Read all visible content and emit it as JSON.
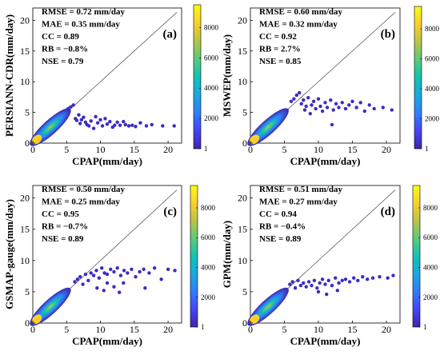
{
  "figure": {
    "colorbar_ticks": [
      "1",
      "2000",
      "4000",
      "6000",
      "8000"
    ],
    "colorbar_range": [
      1,
      9500
    ],
    "colormap": [
      "#3e26a8",
      "#4743f8",
      "#2f7efb",
      "#1aa9e0",
      "#10c3b2",
      "#5cca7b",
      "#b9c446",
      "#f9d02a",
      "#f9fb15"
    ],
    "scatter_color": "#3a2dc4"
  },
  "chart_data": [
    {
      "type": "scatter",
      "panel_label": "(a)",
      "xlabel": "CPAP(mm/day)",
      "ylabel": "PERSIANN-CDR(mm/day)",
      "xlim": [
        0,
        22
      ],
      "ylim": [
        0,
        22
      ],
      "xticks": [
        0,
        5,
        10,
        15,
        20
      ],
      "yticks": [
        0,
        5,
        10,
        15,
        20
      ],
      "reference_line": "1:1",
      "stats": [
        "RMSE = 0.72 mm/day",
        "MAE = 0.35 mm/day",
        "CC = 0.89",
        "RB = −0.8%",
        "NSE = 0.79"
      ],
      "points": [
        [
          5.2,
          5.6
        ],
        [
          5.6,
          5.9
        ],
        [
          6.0,
          6.2
        ],
        [
          6.3,
          4.0
        ],
        [
          6.5,
          3.7
        ],
        [
          6.8,
          4.6
        ],
        [
          7.0,
          3.2
        ],
        [
          7.2,
          3.8
        ],
        [
          7.5,
          4.2
        ],
        [
          7.8,
          3.4
        ],
        [
          8.0,
          3.0
        ],
        [
          8.3,
          2.8
        ],
        [
          8.6,
          3.6
        ],
        [
          9.0,
          2.4
        ],
        [
          9.3,
          4.3
        ],
        [
          9.6,
          3.3
        ],
        [
          10.0,
          3.8
        ],
        [
          10.3,
          2.8
        ],
        [
          10.7,
          4.0
        ],
        [
          11.0,
          3.1
        ],
        [
          11.4,
          3.5
        ],
        [
          11.8,
          2.6
        ],
        [
          12.1,
          2.9
        ],
        [
          12.5,
          3.4
        ],
        [
          12.9,
          2.9
        ],
        [
          13.4,
          3.5
        ],
        [
          13.7,
          3.0
        ],
        [
          14.2,
          2.8
        ],
        [
          14.7,
          2.9
        ],
        [
          15.2,
          2.7
        ],
        [
          15.9,
          3.3
        ],
        [
          16.8,
          2.8
        ],
        [
          17.6,
          3.0
        ],
        [
          19.2,
          2.8
        ],
        [
          20.9,
          2.8
        ]
      ]
    },
    {
      "type": "scatter",
      "panel_label": "(b)",
      "xlabel": "CPAP(mm/day)",
      "ylabel": "MSWEP(mm/day)",
      "xlim": [
        0,
        22
      ],
      "ylim": [
        0,
        22
      ],
      "xticks": [
        0,
        5,
        10,
        15,
        20
      ],
      "yticks": [
        0,
        5,
        10,
        15,
        20
      ],
      "reference_line": "1:1",
      "stats": [
        "RMSE = 0.60 mm/day",
        "MAE = 0.32 mm/day",
        "CC = 0.92",
        "RB = 2.7%",
        "NSE = 0.85"
      ],
      "points": [
        [
          6.0,
          6.8
        ],
        [
          6.4,
          7.2
        ],
        [
          6.8,
          7.8
        ],
        [
          7.2,
          8.2
        ],
        [
          7.5,
          6.4
        ],
        [
          7.8,
          7.0
        ],
        [
          8.0,
          5.4
        ],
        [
          8.2,
          6.0
        ],
        [
          8.5,
          7.4
        ],
        [
          8.8,
          4.8
        ],
        [
          9.0,
          6.2
        ],
        [
          9.3,
          6.8
        ],
        [
          9.6,
          5.6
        ],
        [
          10.0,
          7.2
        ],
        [
          10.3,
          6.0
        ],
        [
          10.6,
          5.2
        ],
        [
          11.0,
          6.6
        ],
        [
          11.3,
          5.8
        ],
        [
          11.8,
          7.0
        ],
        [
          12.2,
          5.4
        ],
        [
          12.6,
          6.4
        ],
        [
          13.0,
          5.8
        ],
        [
          13.5,
          6.6
        ],
        [
          14.0,
          5.6
        ],
        [
          14.5,
          6.2
        ],
        [
          15.0,
          6.8
        ],
        [
          15.6,
          5.8
        ],
        [
          16.2,
          6.6
        ],
        [
          16.8,
          5.2
        ],
        [
          17.5,
          6.2
        ],
        [
          18.2,
          5.6
        ],
        [
          19.5,
          5.8
        ],
        [
          20.8,
          5.4
        ],
        [
          12.0,
          3.0
        ]
      ]
    },
    {
      "type": "scatter",
      "panel_label": "(c)",
      "xlabel": "CPAP(mm/day)",
      "ylabel": "GSMAP-gauge(mm/day)",
      "xlim": [
        0,
        22
      ],
      "ylim": [
        0,
        22
      ],
      "xticks": [
        0,
        5,
        10,
        15,
        20
      ],
      "yticks": [
        0,
        5,
        10,
        15,
        20
      ],
      "reference_line": "1:1",
      "stats": [
        "RMSE = 0.50 mm/day",
        "MAE = 0.25 mm/day",
        "CC = 0.95",
        "RB = −0.7%",
        "NSE = 0.89"
      ],
      "points": [
        [
          6.2,
          6.6
        ],
        [
          6.6,
          7.0
        ],
        [
          7.0,
          7.4
        ],
        [
          7.4,
          6.2
        ],
        [
          7.8,
          7.8
        ],
        [
          8.2,
          6.8
        ],
        [
          8.6,
          8.0
        ],
        [
          9.0,
          7.6
        ],
        [
          9.4,
          8.4
        ],
        [
          9.8,
          7.2
        ],
        [
          10.2,
          8.8
        ],
        [
          10.6,
          8.0
        ],
        [
          11.0,
          7.8
        ],
        [
          11.5,
          8.6
        ],
        [
          12.0,
          8.2
        ],
        [
          12.5,
          8.8
        ],
        [
          13.0,
          7.6
        ],
        [
          13.5,
          8.4
        ],
        [
          14.0,
          8.0
        ],
        [
          14.6,
          8.6
        ],
        [
          15.2,
          7.4
        ],
        [
          15.8,
          8.2
        ],
        [
          16.4,
          8.6
        ],
        [
          17.2,
          8.0
        ],
        [
          18.0,
          8.8
        ],
        [
          19.0,
          7.0
        ],
        [
          20.0,
          8.6
        ],
        [
          21.0,
          8.4
        ],
        [
          9.5,
          5.6
        ],
        [
          12.0,
          5.8
        ],
        [
          12.8,
          4.9
        ],
        [
          11.0,
          6.4
        ],
        [
          10.5,
          5.2
        ],
        [
          16.6,
          5.6
        ],
        [
          13.4,
          6.4
        ]
      ]
    },
    {
      "type": "scatter",
      "panel_label": "(d)",
      "xlabel": "CPAP(mm/day)",
      "ylabel": "GPM(mm/day)",
      "xlim": [
        0,
        22
      ],
      "ylim": [
        0,
        22
      ],
      "xticks": [
        0,
        5,
        10,
        15,
        20
      ],
      "yticks": [
        0,
        5,
        10,
        15,
        20
      ],
      "reference_line": "1:1",
      "stats": [
        "RMSE = 0.51 mm/day",
        "MAE = 0.27 mm/day",
        "CC = 0.94",
        "RB = −0.4%",
        "NSE = 0.89"
      ],
      "points": [
        [
          5.8,
          6.2
        ],
        [
          6.2,
          6.6
        ],
        [
          6.6,
          5.6
        ],
        [
          7.0,
          6.8
        ],
        [
          7.4,
          6.0
        ],
        [
          7.8,
          6.4
        ],
        [
          8.2,
          5.8
        ],
        [
          8.6,
          6.6
        ],
        [
          9.0,
          6.0
        ],
        [
          9.4,
          6.8
        ],
        [
          9.8,
          5.6
        ],
        [
          10.2,
          6.4
        ],
        [
          10.6,
          7.0
        ],
        [
          11.0,
          6.2
        ],
        [
          11.5,
          6.8
        ],
        [
          12.0,
          6.0
        ],
        [
          12.5,
          7.2
        ],
        [
          13.0,
          6.4
        ],
        [
          13.5,
          6.8
        ],
        [
          14.0,
          7.0
        ],
        [
          14.6,
          6.6
        ],
        [
          15.2,
          7.2
        ],
        [
          15.8,
          6.8
        ],
        [
          16.5,
          7.4
        ],
        [
          17.2,
          7.0
        ],
        [
          18.0,
          7.2
        ],
        [
          19.0,
          7.4
        ],
        [
          20.2,
          7.2
        ],
        [
          21.0,
          7.6
        ],
        [
          10.0,
          5.0
        ],
        [
          11.2,
          4.6
        ],
        [
          12.8,
          5.2
        ]
      ]
    }
  ]
}
